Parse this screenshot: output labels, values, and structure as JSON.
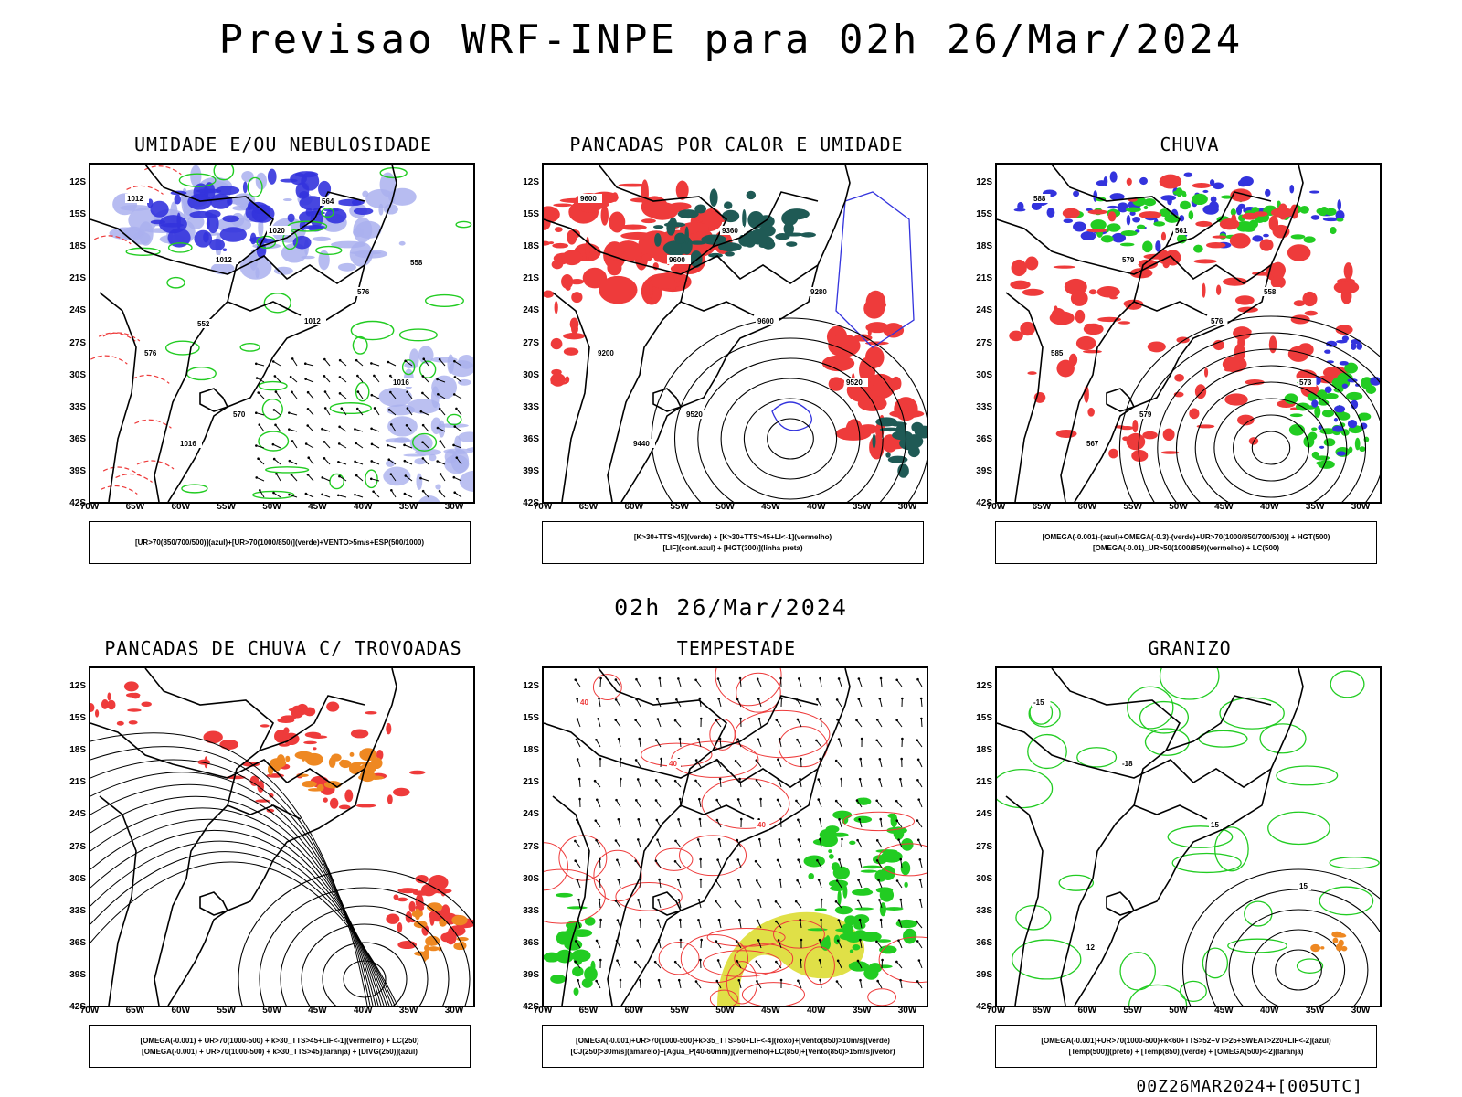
{
  "title": "Previsao WRF-INPE  para 02h 26/Mar/2024",
  "mid_date": "02h 26/Mar/2024",
  "footer": "00Z26MAR2024+[005UTC]",
  "axes": {
    "lat_labels": [
      "12S",
      "15S",
      "18S",
      "21S",
      "24S",
      "27S",
      "30S",
      "33S",
      "36S",
      "39S",
      "42S"
    ],
    "lon_labels": [
      "70W",
      "65W",
      "60W",
      "55W",
      "50W",
      "45W",
      "40W",
      "35W",
      "30W"
    ]
  },
  "panels": [
    {
      "title": "UMIDADE E/OU NEBULOSIDADE",
      "legend": [
        "[UR>70(850/700/500)](azul)+[UR>70(1000/850)](verde)+VENTO>5m/s+ESP(500/1000)"
      ],
      "contour_labels": [
        "1012",
        "1012",
        "1012",
        "1016",
        "1016",
        "1020",
        "576",
        "576",
        "570",
        "564",
        "558",
        "552"
      ]
    },
    {
      "title": "PANCADAS POR CALOR E UMIDADE",
      "legend": [
        "[K>30+TTS>45](verde) + [K>30+TTS>45+LI<-1](vermelho)",
        "[LIF](cont.azul) + [HGT(300)](linha preta)"
      ],
      "contour_labels": [
        "9600",
        "9600",
        "9600",
        "9520",
        "9440",
        "9360",
        "9280",
        "9200",
        "9520"
      ]
    },
    {
      "title": "CHUVA",
      "legend": [
        "[OMEGA(-0.001)-(azul)+OMEGA(-0.3)-(verde)+UR>70(1000/850/700/500)] + HGT(500)",
        "[OMEGA(-0.01)_UR>50(1000/850)(vermelho) + LC(500)"
      ],
      "contour_labels": [
        "588",
        "579",
        "576",
        "573",
        "567",
        "561",
        "558",
        "585",
        "579"
      ]
    },
    {
      "title": "PANCADAS DE CHUVA C/ TROVOADAS",
      "legend": [
        "[OMEGA(-0.001) + UR>70(1000-500) + k>30_TTS>45+LIF<-1](vermelho) + LC(250)",
        "[OMEGA(-0.001) + UR>70(1000-500) + k>30_TTS>45](laranja) + [DIVG(250)](azul)"
      ],
      "contour_labels": []
    },
    {
      "title": "TEMPESTADE",
      "legend": [
        "[OMEGA(-0.001)+UR>70(1000-500)+k>35_TTS>50+LIF<-4](roxo)+[Vento(850)>10m/s](verde)",
        "[CJ(250)>30m/s](amarelo)+[Agua_P(40-60mm)](vermelho)+LC(850)+[Vento(850)>15m/s](vetor)"
      ],
      "contour_labels": [
        "40",
        "40",
        "40"
      ]
    },
    {
      "title": "GRANIZO",
      "legend": [
        "[OMEGA(-0.001)+UR>70(1000-500)+k<60+TTS>52+VT>25+SWEAT>220+LIF<-2](azul)",
        "[Temp(500)](preto) + [Temp(850)](verde) + [OMEGA(500)<-2](laranja)"
      ],
      "contour_labels": [
        "-15",
        "-18",
        "15",
        "15",
        "12"
      ]
    }
  ],
  "colors": {
    "blue": "#3333dd",
    "light_blue": "#aab0ee",
    "green": "#22cc22",
    "red": "#ee3b3b",
    "dark_teal": "#1f5a55",
    "orange": "#ee8822",
    "yellow": "#dddd33",
    "black": "#000000"
  }
}
